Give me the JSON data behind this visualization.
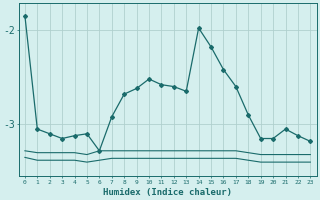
{
  "xlabel": "Humidex (Indice chaleur)",
  "background_color": "#d5efee",
  "grid_color": "#b0d0ce",
  "line_color": "#1a6b6b",
  "x_values": [
    0,
    1,
    2,
    3,
    4,
    5,
    6,
    7,
    8,
    9,
    10,
    11,
    12,
    13,
    14,
    15,
    16,
    17,
    18,
    19,
    20,
    21,
    22,
    23
  ],
  "line1_y": [
    -1.85,
    -3.05,
    -3.1,
    -3.15,
    -3.12,
    -3.1,
    -3.28,
    -2.92,
    -2.68,
    -2.62,
    -2.52,
    -2.58,
    -2.6,
    -2.65,
    -1.98,
    -2.18,
    -2.42,
    -2.6,
    -2.9,
    -3.15,
    -3.15,
    -3.05,
    -3.12,
    -3.18
  ],
  "line2_y": [
    -3.28,
    -3.3,
    -3.3,
    -3.3,
    -3.3,
    -3.32,
    -3.28,
    -3.28,
    -3.28,
    -3.28,
    -3.28,
    -3.28,
    -3.28,
    -3.28,
    -3.28,
    -3.28,
    -3.28,
    -3.28,
    -3.3,
    -3.32,
    -3.32,
    -3.32,
    -3.32,
    -3.32
  ],
  "line3_y": [
    -3.35,
    -3.38,
    -3.38,
    -3.38,
    -3.38,
    -3.4,
    -3.38,
    -3.36,
    -3.36,
    -3.36,
    -3.36,
    -3.36,
    -3.36,
    -3.36,
    -3.36,
    -3.36,
    -3.36,
    -3.36,
    -3.38,
    -3.4,
    -3.4,
    -3.4,
    -3.4,
    -3.4
  ],
  "ylim": [
    -3.55,
    -1.72
  ],
  "yticks": [
    -3.0,
    -2.0
  ],
  "xlim": [
    -0.5,
    23.5
  ]
}
